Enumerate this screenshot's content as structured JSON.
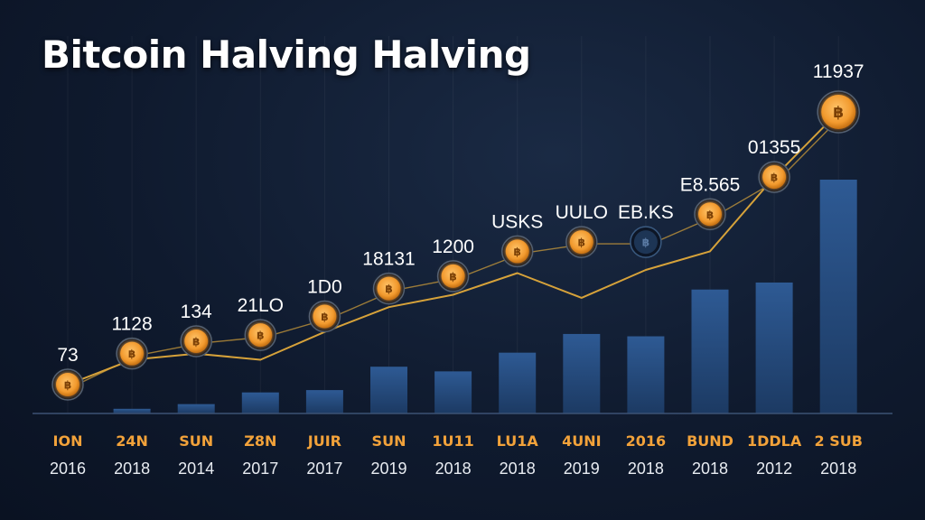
{
  "chart_data": {
    "type": "bar",
    "title": "Bitcoin Halving Halving",
    "xlabel": "",
    "ylabel": "",
    "grid": false,
    "legend": "none",
    "ylim": [
      0,
      100
    ],
    "categories": [
      "ION",
      "24N",
      "SUN",
      "Z8N",
      "JUIR",
      "SUN",
      "1U11",
      "LU1A",
      "4UNI",
      "2016",
      "BUND",
      "1DDLA",
      "2 SUB"
    ],
    "years": [
      "2016",
      "2018",
      "2014",
      "2017",
      "2017",
      "2019",
      "2018",
      "2018",
      "2019",
      "2018",
      "2018",
      "2012",
      "2018"
    ],
    "values": [
      0,
      2,
      4,
      9,
      10,
      20,
      18,
      26,
      34,
      33,
      53,
      56,
      100
    ],
    "line_values": [
      12,
      20,
      22,
      20,
      29,
      37,
      41,
      48,
      40,
      49,
      55,
      79,
      100
    ],
    "coin_levels": [
      12,
      22,
      26,
      28,
      34,
      43,
      47,
      55,
      58,
      58,
      67,
      79,
      100
    ],
    "coin_faded": [
      false,
      false,
      false,
      false,
      false,
      false,
      false,
      false,
      false,
      true,
      false,
      false,
      false
    ],
    "point_labels": [
      "73",
      "1128",
      "134",
      "21LO",
      "1D0",
      "18131",
      "1200",
      "USKS",
      "UULO",
      "EB.KS",
      "E8.565",
      "01355",
      "11937"
    ],
    "colors": {
      "bar": "#284d80",
      "line": "#d6a23a",
      "coin": "#f2a23a",
      "category_label": "#f2a23a",
      "year_label": "#e8ecf2",
      "value_label": "#ffffff"
    }
  }
}
